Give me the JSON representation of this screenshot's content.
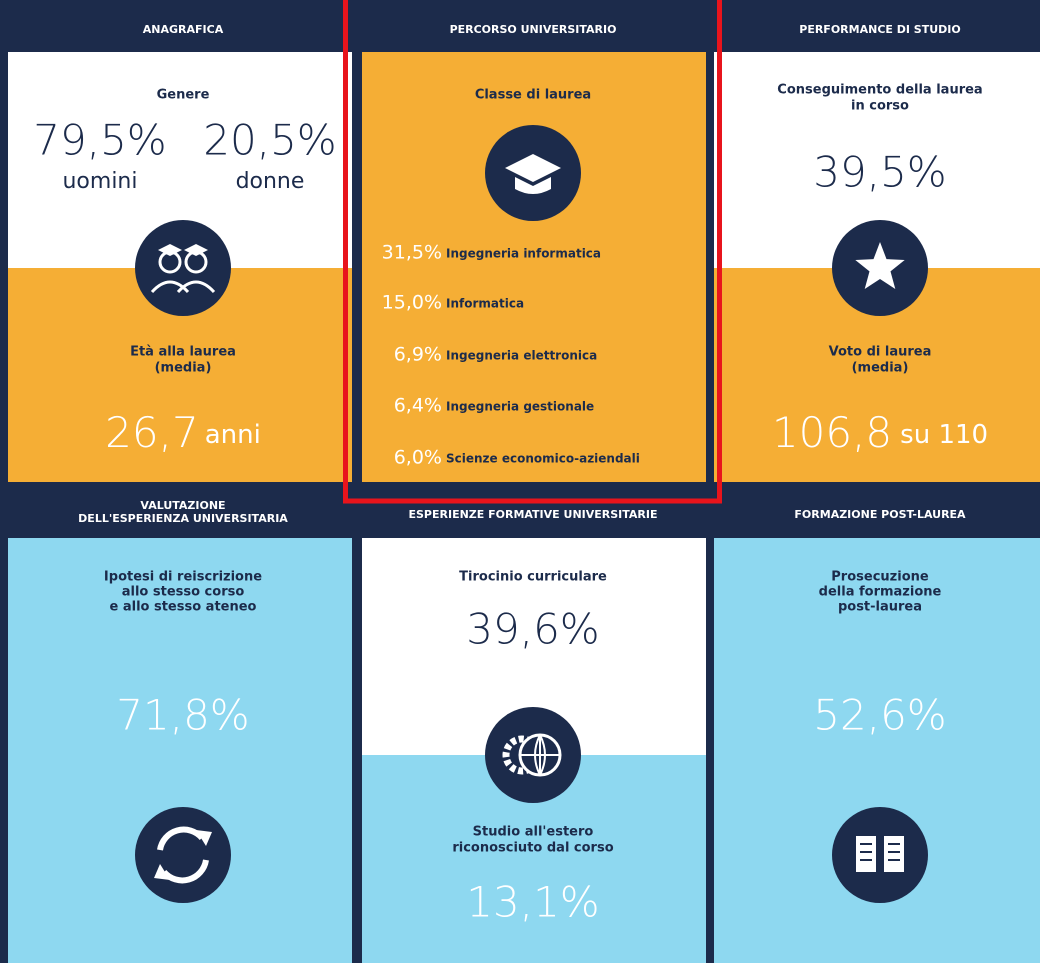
{
  "top_row": [
    {
      "header": "ANAGRAFICA",
      "gender_title": "Genere",
      "men_value": "79,5%",
      "men_label": "uomini",
      "women_value": "20,5%",
      "women_label": "donne",
      "age_title": [
        "Età alla laurea",
        "(media)"
      ],
      "age_value": "26,7",
      "age_unit": "anni"
    },
    {
      "header": "PERCORSO UNIVERSITARIO",
      "title": "Classe di laurea",
      "classes": [
        {
          "value": "31,5%",
          "label": "Ingegneria informatica"
        },
        {
          "value": "15,0%",
          "label": "Informatica"
        },
        {
          "value": "6,9%",
          "label": "Ingegneria elettronica"
        },
        {
          "value": "6,4%",
          "label": "Ingegneria gestionale"
        },
        {
          "value": "6,0%",
          "label": "Scienze economico-aziendali"
        }
      ]
    },
    {
      "header": "PERFORMANCE DI STUDIO",
      "completion_title": [
        "Conseguimento della laurea",
        "in corso"
      ],
      "completion_value": "39,5%",
      "grade_title": [
        "Voto di laurea",
        "(media)"
      ],
      "grade_value": "106,8",
      "grade_scale": "su 110"
    }
  ],
  "bottom_row": [
    {
      "header": [
        "VALUTAZIONE",
        "DELL'ESPERIENZA UNIVERSITARIA"
      ],
      "title": [
        "Ipotesi di reiscrizione",
        "allo stesso corso",
        "e allo stesso ateneo"
      ],
      "value": "71,8%"
    },
    {
      "header": "ESPERIENZE FORMATIVE UNIVERSITARIE",
      "internship_title": "Tirocinio curriculare",
      "internship_value": "39,6%",
      "abroad_title": [
        "Studio all'estero",
        "riconosciuto dal corso"
      ],
      "abroad_value": "13,1%"
    },
    {
      "header": "FORMAZIONE POST-LAUREA",
      "title": [
        "Prosecuzione",
        "della formazione",
        "post-laurea"
      ],
      "value": "52,6%"
    }
  ]
}
